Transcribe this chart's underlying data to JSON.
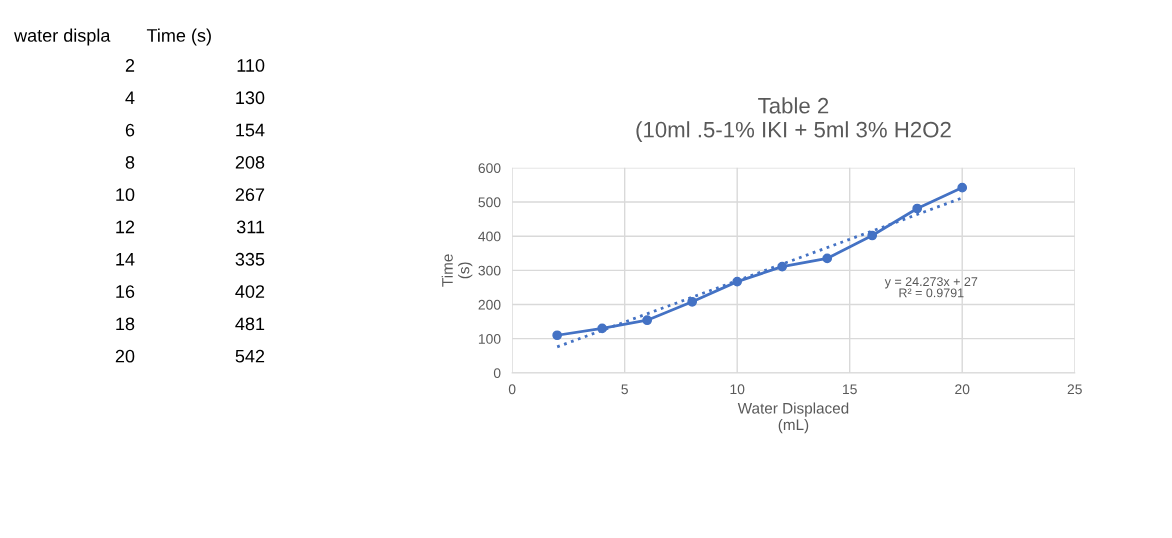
{
  "chart_data": {
    "type": "line",
    "title": "Table 2\n(10ml .5-1% IKI + 5ml 3% H2O2",
    "xlabel": "Water Displaced\n(mL)",
    "ylabel": "Time\n(s)",
    "x": [
      2,
      4,
      6,
      8,
      10,
      12,
      14,
      16,
      18,
      20
    ],
    "series": [
      {
        "color": "#4472c4",
        "marker": "circle",
        "line_style": "solid",
        "values": [
          110,
          130,
          154,
          208,
          267,
          311,
          335,
          402,
          481,
          542
        ]
      },
      {
        "type": "line",
        "color": "#4472c4",
        "marker": "none",
        "line_style": "dotted",
        "x": [
          2,
          20
        ],
        "values": [
          76,
          512
        ]
      }
    ],
    "annotations": [
      "water displa",
      "Time (s)",
      "2",
      "110",
      "4",
      "130",
      "6",
      "154",
      "8",
      "208",
      "10",
      "267",
      "12",
      "311",
      "14",
      "335",
      "16",
      "402",
      "18",
      "481",
      "20",
      "542",
      "y = 24.273x + 27",
      "R² = 0.9791"
    ],
    "xlim": [
      0,
      25
    ],
    "xticks": [
      0,
      5,
      10,
      15,
      20,
      25
    ],
    "ylim": [
      0,
      600
    ],
    "yticks": [
      0,
      100,
      200,
      300,
      400,
      500,
      600
    ],
    "grid": true,
    "legend": false
  }
}
